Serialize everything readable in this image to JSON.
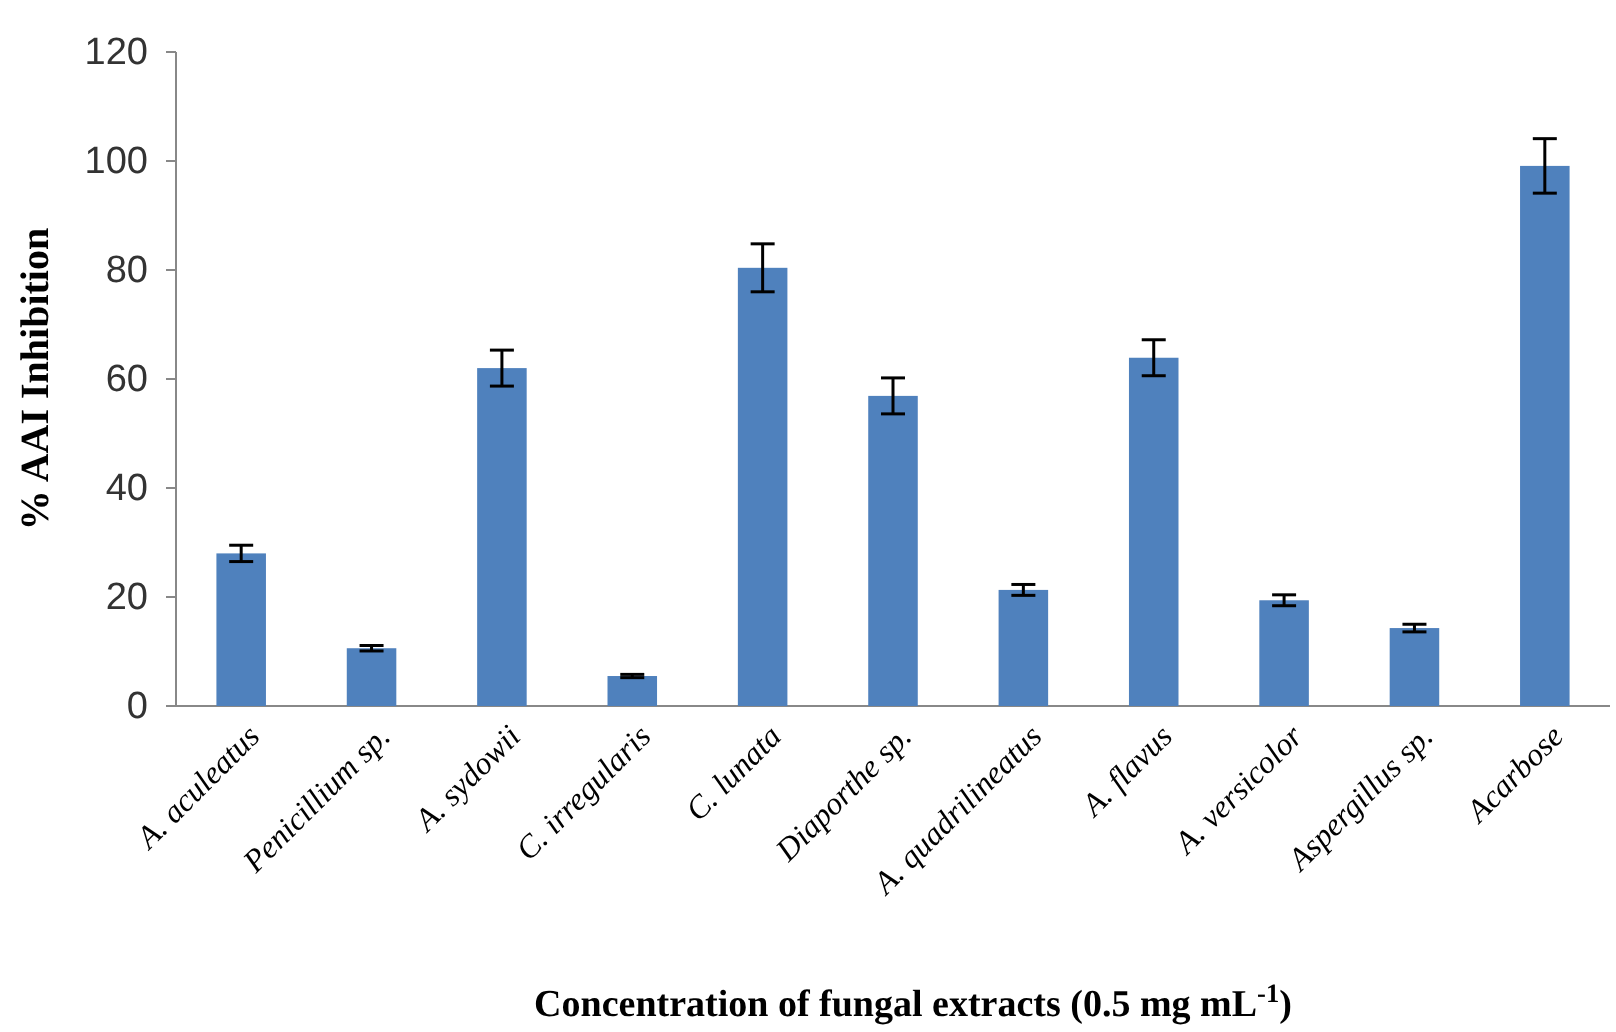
{
  "chart_data": {
    "type": "bar",
    "xlabel": "Concentration of fungal extracts (0.5 mg mL$^{-1}$)",
    "ylabel": "% AAI Inhibition",
    "categories": [
      "A. aculeatus",
      "Penicillium sp.",
      "A. sydowii",
      "C. irregularis",
      "C. lunata",
      "Diaporthe sp.",
      "A. quadrilineatus",
      "A. flavus",
      "A. versicolor",
      "Aspergillus sp.",
      "Acarbose"
    ],
    "values": [
      28,
      10.6,
      62,
      5.5,
      80.4,
      56.9,
      21.3,
      63.9,
      19.4,
      14.3,
      99.1
    ],
    "errors": [
      1.5,
      0.5,
      3.3,
      0.3,
      4.4,
      3.3,
      1,
      3.3,
      1,
      0.7,
      5
    ],
    "color": "#4f81bd",
    "ylim": [
      0,
      120
    ],
    "yticks": [
      0,
      20,
      40,
      60,
      80,
      100,
      120
    ],
    "grid": false
  }
}
